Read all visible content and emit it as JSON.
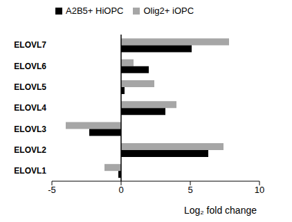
{
  "chart_data": {
    "type": "bar",
    "orientation": "horizontal",
    "categories": [
      "ELOVL7",
      "ELOVL6",
      "ELOVL5",
      "ELOVL4",
      "ELOVL3",
      "ELOVL2",
      "ELOVL1"
    ],
    "series": [
      {
        "name": "A2B5+ HiOPC",
        "color": "#000000",
        "values": [
          5.1,
          2.0,
          0.25,
          3.2,
          -2.3,
          6.3,
          -0.2
        ]
      },
      {
        "name": "Olig2+ iOPC",
        "color": "#a6a6a6",
        "values": [
          7.8,
          0.9,
          2.4,
          4.0,
          -4.0,
          7.4,
          -1.2
        ]
      }
    ],
    "x_label": "Log₂ fold change",
    "xlim": [
      -5,
      10
    ],
    "xticks": [
      -5,
      0,
      5,
      10
    ],
    "grid": false,
    "legend": "top"
  }
}
